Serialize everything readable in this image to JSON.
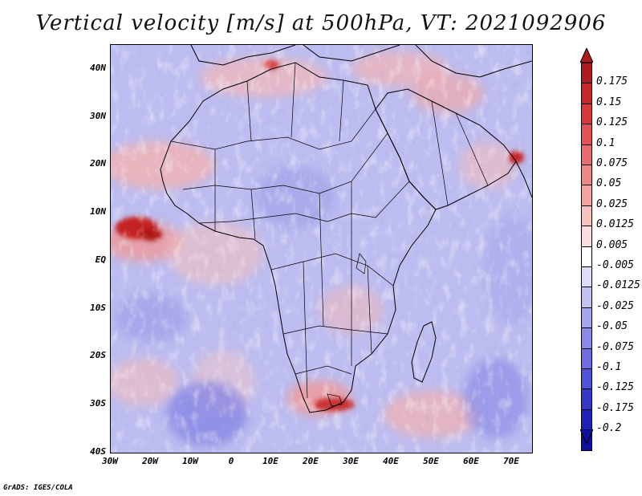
{
  "title": "Vertical velocity [m/s] at 500hPa, VT: 2021092906",
  "y_axis_labels": [
    "40N",
    "30N",
    "20N",
    "10N",
    "EQ",
    "10S",
    "20S",
    "30S",
    "40S"
  ],
  "x_axis_labels": [
    "30W",
    "20W",
    "10W",
    "0",
    "10E",
    "20E",
    "30E",
    "40E",
    "50E",
    "60E",
    "70E"
  ],
  "colorbar": {
    "labels": [
      "0.175",
      "0.15",
      "0.125",
      "0.1",
      "0.075",
      "0.05",
      "0.025",
      "0.0125",
      "0.005",
      "-0.005",
      "-0.0125",
      "-0.025",
      "-0.05",
      "-0.075",
      "-0.1",
      "-0.125",
      "-0.175",
      "-0.2"
    ],
    "colors": [
      "#b01c1c",
      "#c52828",
      "#d63a3a",
      "#e25252",
      "#ea6b6b",
      "#f08686",
      "#f5a2a2",
      "#f9c0c0",
      "#fcdede",
      "#ffffff",
      "#dedefa",
      "#c2c2f4",
      "#a6a6ee",
      "#8a8ae8",
      "#6e6ee0",
      "#5252d6",
      "#3838c8",
      "#2020b8",
      "#1010a0"
    ],
    "top_arrow_color": "#b01c1c",
    "bottom_arrow_color": "#1010a0"
  },
  "footer": "GrADS: IGES/COLA",
  "map_colors": {
    "ocean_base": "#b8b8f0",
    "land_base": "#c8c8f2",
    "positive": "#f0a0a0",
    "strong_positive": "#c02020",
    "border": "#000000"
  }
}
